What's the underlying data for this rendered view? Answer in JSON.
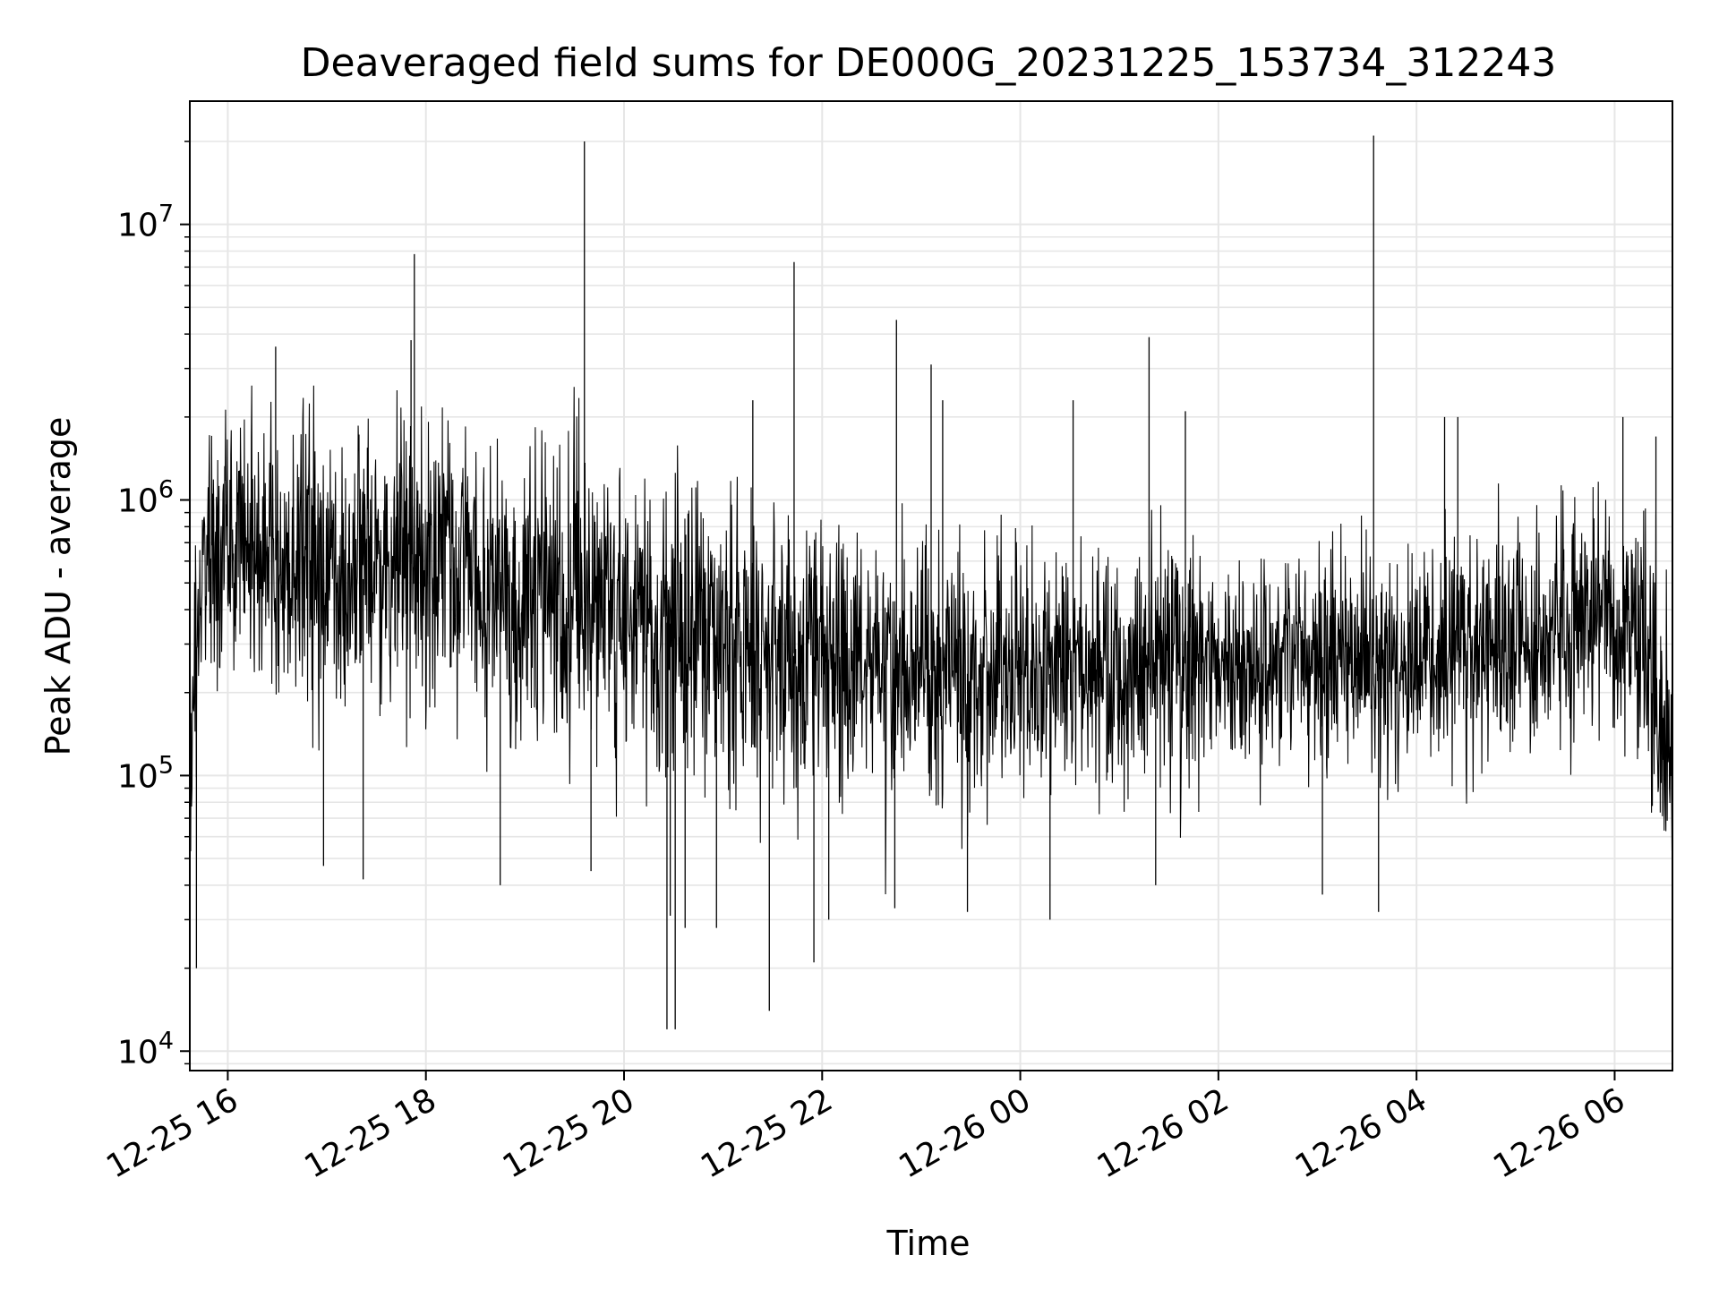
{
  "chart_data": {
    "type": "line",
    "title": "Deaveraged field sums for DE000G_20231225_153734_312243",
    "xlabel": "Time",
    "ylabel": "Peak ADU - average",
    "y_scale": "log",
    "ylim": [
      8500,
      28000000
    ],
    "xlim": [
      "2023-12-25 15:37",
      "2023-12-26 06:35"
    ],
    "grid": true,
    "line_color": "#000000",
    "grid_color": "#e6e6e6",
    "x_ticks": [
      {
        "value": "2023-12-25 16:00",
        "label": "12-25 16"
      },
      {
        "value": "2023-12-25 18:00",
        "label": "12-25 18"
      },
      {
        "value": "2023-12-25 20:00",
        "label": "12-25 20"
      },
      {
        "value": "2023-12-25 22:00",
        "label": "12-25 22"
      },
      {
        "value": "2023-12-26 00:00",
        "label": "12-26 00"
      },
      {
        "value": "2023-12-26 02:00",
        "label": "12-26 02"
      },
      {
        "value": "2023-12-26 04:00",
        "label": "12-26 04"
      },
      {
        "value": "2023-12-26 06:00",
        "label": "12-26 06"
      }
    ],
    "y_ticks": [
      {
        "value": 10000,
        "base": "10",
        "exp": "4"
      },
      {
        "value": 100000,
        "base": "10",
        "exp": "5"
      },
      {
        "value": 1000000,
        "base": "10",
        "exp": "6"
      },
      {
        "value": 10000000,
        "base": "10",
        "exp": "7"
      }
    ],
    "series": [
      {
        "x": [
          "2023-12-25 15:37",
          "2023-12-25 15:40",
          "2023-12-25 15:43",
          "2023-12-25 15:46",
          "2023-12-25 15:50",
          "2023-12-25 15:55",
          "2023-12-25 16:00",
          "2023-12-25 16:10",
          "2023-12-25 16:20",
          "2023-12-25 16:30",
          "2023-12-25 16:40",
          "2023-12-25 16:55",
          "2023-12-25 17:10",
          "2023-12-25 17:25",
          "2023-12-25 17:40",
          "2023-12-25 17:55",
          "2023-12-25 18:10",
          "2023-12-25 18:25",
          "2023-12-25 18:40",
          "2023-12-25 18:55",
          "2023-12-25 19:10",
          "2023-12-25 19:25",
          "2023-12-25 19:40",
          "2023-12-25 19:55",
          "2023-12-25 20:10",
          "2023-12-25 20:25",
          "2023-12-25 20:40",
          "2023-12-25 20:55",
          "2023-12-25 21:10",
          "2023-12-25 21:25",
          "2023-12-25 21:40",
          "2023-12-25 21:55",
          "2023-12-25 22:10",
          "2023-12-25 22:25",
          "2023-12-25 22:40",
          "2023-12-25 22:55",
          "2023-12-25 23:10",
          "2023-12-25 23:25",
          "2023-12-25 23:40",
          "2023-12-25 23:55",
          "2023-12-26 00:10",
          "2023-12-26 00:25",
          "2023-12-26 00:40",
          "2023-12-26 00:55",
          "2023-12-26 01:10",
          "2023-12-26 01:25",
          "2023-12-26 01:40",
          "2023-12-26 01:55",
          "2023-12-26 02:10",
          "2023-12-26 02:25",
          "2023-12-26 02:40",
          "2023-12-26 02:55",
          "2023-12-26 03:10",
          "2023-12-26 03:25",
          "2023-12-26 03:40",
          "2023-12-26 03:55",
          "2023-12-26 04:10",
          "2023-12-26 04:25",
          "2023-12-26 04:40",
          "2023-12-26 04:55",
          "2023-12-26 05:10",
          "2023-12-26 05:25",
          "2023-12-26 05:40",
          "2023-12-26 05:55",
          "2023-12-26 06:10",
          "2023-12-26 06:25",
          "2023-12-26 06:35"
        ],
        "center": [
          100000,
          200000,
          400000,
          550000,
          600000,
          650000,
          700000,
          700000,
          650000,
          600000,
          550000,
          520000,
          500000,
          520000,
          550000,
          600000,
          580000,
          520000,
          480000,
          460000,
          440000,
          430000,
          420000,
          400000,
          380000,
          360000,
          340000,
          320000,
          300000,
          290000,
          280000,
          270000,
          260000,
          255000,
          250000,
          245000,
          240000,
          235000,
          230000,
          230000,
          232000,
          235000,
          240000,
          245000,
          250000,
          252000,
          255000,
          258000,
          260000,
          262000,
          265000,
          268000,
          270000,
          272000,
          275000,
          278000,
          280000,
          285000,
          290000,
          300000,
          320000,
          340000,
          360000,
          380000,
          350000,
          200000,
          120000
        ],
        "spread": [
          2.5,
          2.5,
          2.6,
          2.6,
          2.6,
          2.7,
          2.7,
          2.7,
          2.7,
          2.7,
          2.7,
          2.7,
          2.7,
          2.7,
          2.7,
          2.7,
          2.7,
          2.7,
          2.7,
          2.7,
          2.7,
          2.7,
          2.7,
          2.7,
          2.7,
          2.7,
          2.7,
          2.6,
          2.6,
          2.6,
          2.5,
          2.5,
          2.5,
          2.5,
          2.4,
          2.4,
          2.4,
          2.3,
          2.3,
          2.3,
          2.2,
          2.2,
          2.2,
          2.2,
          2.2,
          2.2,
          2.2,
          2.2,
          2.2,
          2.2,
          2.2,
          2.2,
          2.2,
          2.2,
          2.2,
          2.2,
          2.2,
          2.2,
          2.2,
          2.2,
          2.3,
          2.3,
          2.3,
          2.3,
          2.3,
          2.5,
          2.6
        ]
      }
    ],
    "spikes": [
      {
        "x": "2023-12-25 15:41",
        "y": 20000
      },
      {
        "x": "2023-12-25 16:29",
        "y": 3600000
      },
      {
        "x": "2023-12-25 16:58",
        "y": 47000
      },
      {
        "x": "2023-12-25 17:22",
        "y": 42000
      },
      {
        "x": "2023-12-25 17:53",
        "y": 7800000
      },
      {
        "x": "2023-12-25 17:51",
        "y": 3800000
      },
      {
        "x": "2023-12-25 18:45",
        "y": 40000
      },
      {
        "x": "2023-12-25 19:36",
        "y": 20000000
      },
      {
        "x": "2023-12-25 19:40",
        "y": 45000
      },
      {
        "x": "2023-12-25 20:26",
        "y": 12000
      },
      {
        "x": "2023-12-25 20:28",
        "y": 31000
      },
      {
        "x": "2023-12-25 20:31",
        "y": 12000
      },
      {
        "x": "2023-12-25 20:37",
        "y": 28000
      },
      {
        "x": "2023-12-25 20:56",
        "y": 28000
      },
      {
        "x": "2023-12-25 21:18",
        "y": 2300000
      },
      {
        "x": "2023-12-25 21:28",
        "y": 14000
      },
      {
        "x": "2023-12-25 21:43",
        "y": 7300000
      },
      {
        "x": "2023-12-25 21:55",
        "y": 21000
      },
      {
        "x": "2023-12-25 22:04",
        "y": 30000
      },
      {
        "x": "2023-12-25 22:45",
        "y": 4500000
      },
      {
        "x": "2023-12-25 22:44",
        "y": 33000
      },
      {
        "x": "2023-12-25 23:06",
        "y": 3100000
      },
      {
        "x": "2023-12-25 23:13",
        "y": 2300000
      },
      {
        "x": "2023-12-25 23:28",
        "y": 32000
      },
      {
        "x": "2023-12-26 00:18",
        "y": 30000
      },
      {
        "x": "2023-12-26 00:32",
        "y": 2300000
      },
      {
        "x": "2023-12-26 01:18",
        "y": 3900000
      },
      {
        "x": "2023-12-26 01:22",
        "y": 40000
      },
      {
        "x": "2023-12-26 01:40",
        "y": 2100000
      },
      {
        "x": "2023-12-26 03:03",
        "y": 37000
      },
      {
        "x": "2023-12-26 03:34",
        "y": 21000000
      },
      {
        "x": "2023-12-26 03:37",
        "y": 32000
      },
      {
        "x": "2023-12-26 04:17",
        "y": 2000000
      },
      {
        "x": "2023-12-26 04:25",
        "y": 2000000
      },
      {
        "x": "2023-12-26 06:05",
        "y": 2000000
      },
      {
        "x": "2023-12-26 06:25",
        "y": 1700000
      }
    ]
  }
}
